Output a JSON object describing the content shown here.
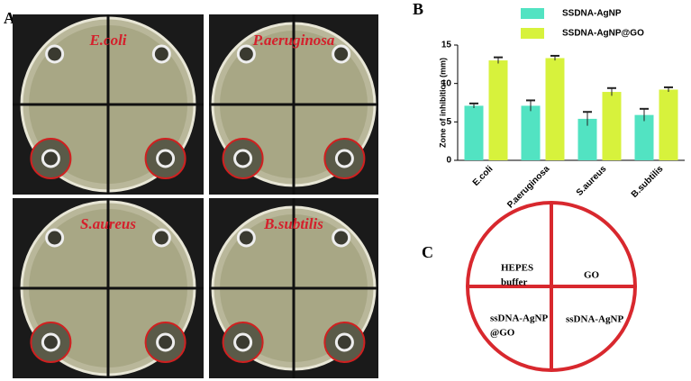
{
  "panel_labels": [
    "A",
    "B",
    "C"
  ],
  "photos": [
    {
      "label": "E.coli"
    },
    {
      "label": "P.aeruginosa"
    },
    {
      "label": "S.aureus"
    },
    {
      "label": "B.subtilis"
    }
  ],
  "chart_data": {
    "type": "bar",
    "y_label": "Zone of inhibition (mm)",
    "categories": [
      "E.coli",
      "P.aeruginosa",
      "S.aureus",
      "B.subtilis"
    ],
    "series": [
      {
        "name": "SSDNA-AgNP",
        "color": "#52e3c2",
        "values": [
          7.1,
          7.1,
          5.4,
          5.9
        ],
        "errors": [
          0.3,
          0.7,
          0.9,
          0.8
        ]
      },
      {
        "name": "SSDNA-AgNP@GO",
        "color": "#d7f23c",
        "values": [
          13.0,
          13.3,
          8.9,
          9.2
        ],
        "errors": [
          0.4,
          0.3,
          0.5,
          0.3
        ]
      }
    ],
    "ylim": [
      0,
      15
    ],
    "yticks": [
      0,
      5,
      10,
      15
    ],
    "legend": "top"
  },
  "diagram": {
    "quadrants": [
      {
        "lines": [
          "HEPES",
          "buffer"
        ]
      },
      {
        "lines": [
          "GO"
        ]
      },
      {
        "lines": [
          "ssDNA-AgNP",
          "@GO"
        ]
      },
      {
        "lines": [
          "ssDNA-AgNP"
        ]
      }
    ]
  }
}
